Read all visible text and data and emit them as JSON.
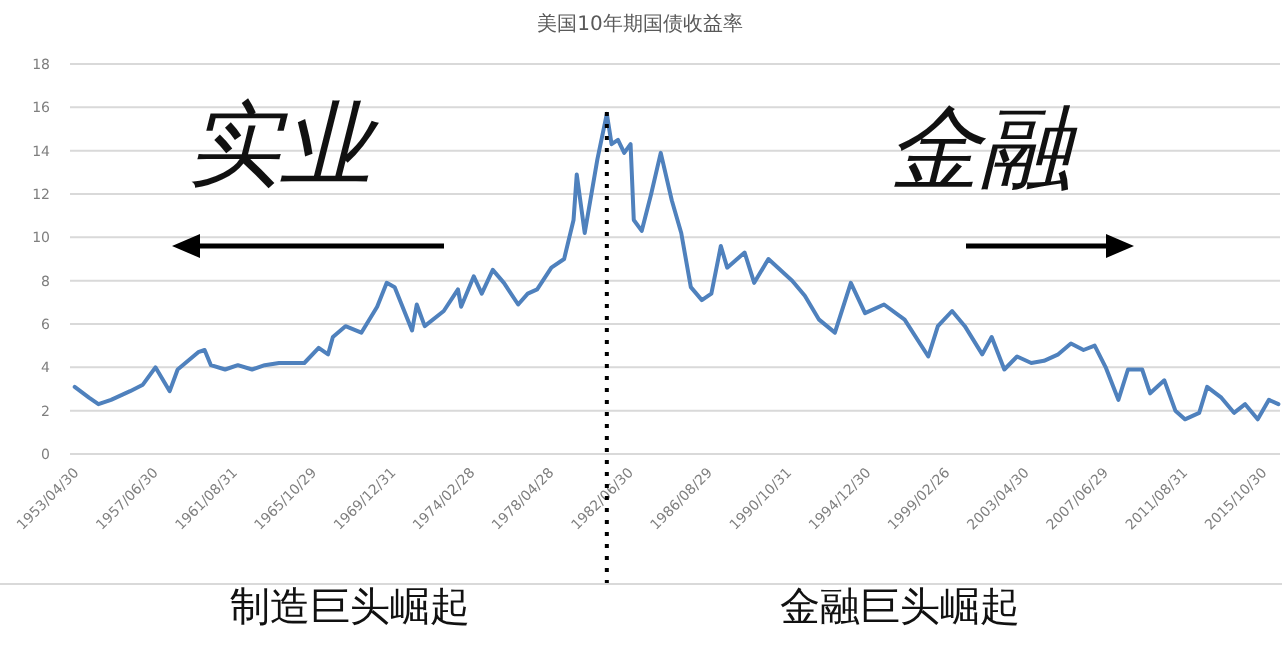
{
  "chart_data": {
    "type": "line",
    "title": "美国10年期国债收益率",
    "x": [
      "1953-04",
      "1954-01",
      "1954-07",
      "1955-03",
      "1956-03",
      "1956-11",
      "1957-07",
      "1958-04",
      "1958-09",
      "1959-10",
      "1960-02",
      "1960-06",
      "1961-03",
      "1961-11",
      "1962-08",
      "1963-04",
      "1964-01",
      "1965-05",
      "1966-02",
      "1966-08",
      "1966-11",
      "1967-07",
      "1968-05",
      "1969-03",
      "1969-09",
      "1970-02",
      "1971-01",
      "1971-04",
      "1971-09",
      "1972-09",
      "1973-06",
      "1973-08",
      "1974-04",
      "1974-09",
      "1975-04",
      "1975-11",
      "1976-08",
      "1977-02",
      "1977-08",
      "1978-05",
      "1979-01",
      "1979-07",
      "1979-09",
      "1980-02",
      "1980-10",
      "1981-04",
      "1981-07",
      "1981-11",
      "1982-03",
      "1982-07",
      "1982-09",
      "1983-02",
      "1983-08",
      "1984-02",
      "1984-09",
      "1985-03",
      "1985-09",
      "1986-04",
      "1986-10",
      "1987-04",
      "1987-08",
      "1988-07",
      "1989-01",
      "1989-10",
      "1991-01",
      "1991-09",
      "1992-06",
      "1993-04",
      "1994-02",
      "1994-11",
      "1995-11",
      "1996-12",
      "1998-03",
      "1998-09",
      "1999-06",
      "2000-02",
      "2001-01",
      "2001-07",
      "2002-03",
      "2002-11",
      "2003-08",
      "2004-04",
      "2005-01",
      "2005-09",
      "2006-05",
      "2006-12",
      "2007-07",
      "2008-03",
      "2008-09",
      "2009-06",
      "2009-11",
      "2010-08",
      "2011-03",
      "2011-09",
      "2012-06",
      "2012-11",
      "2013-08",
      "2014-04",
      "2014-11",
      "2015-07",
      "2016-02",
      "2016-08"
    ],
    "series": [
      {
        "color": "#4f81bd",
        "values": [
          3.1,
          2.6,
          2.3,
          2.5,
          2.9,
          3.2,
          4.0,
          2.9,
          3.9,
          4.7,
          4.8,
          4.1,
          3.9,
          4.1,
          3.9,
          4.1,
          4.2,
          4.2,
          4.9,
          4.6,
          5.4,
          5.9,
          5.6,
          6.8,
          7.9,
          7.7,
          5.7,
          6.9,
          5.9,
          6.6,
          7.6,
          6.8,
          8.2,
          7.4,
          8.5,
          7.9,
          6.9,
          7.4,
          7.6,
          8.6,
          9.0,
          10.8,
          12.9,
          10.2,
          13.6,
          15.7,
          14.3,
          14.5,
          13.9,
          14.3,
          10.8,
          10.3,
          12.0,
          13.9,
          11.7,
          10.2,
          7.7,
          7.1,
          7.4,
          9.6,
          8.6,
          9.3,
          7.9,
          9.0,
          8.0,
          7.3,
          6.2,
          5.6,
          7.9,
          6.5,
          6.9,
          6.2,
          4.5,
          5.9,
          6.6,
          5.9,
          4.6,
          5.4,
          3.9,
          4.5,
          4.2,
          4.3,
          4.6,
          5.1,
          4.8,
          5.0,
          4.0,
          2.5,
          3.9,
          3.9,
          2.8,
          3.4,
          2.0,
          1.6,
          1.9,
          3.1,
          2.6,
          1.9,
          2.3,
          1.6,
          2.5,
          2.3
        ]
      }
    ],
    "xlim": [
      "1953-01",
      "2016-09"
    ],
    "xticks": [
      {
        "value": "1953-04-30",
        "label": "1953/04/30"
      },
      {
        "value": "1957-06-30",
        "label": "1957/06/30"
      },
      {
        "value": "1961-08-31",
        "label": "1961/08/31"
      },
      {
        "value": "1965-10-29",
        "label": "1965/10/29"
      },
      {
        "value": "1969-12-31",
        "label": "1969/12/31"
      },
      {
        "value": "1974-02-28",
        "label": "1974/02/28"
      },
      {
        "value": "1978-04-28",
        "label": "1978/04/28"
      },
      {
        "value": "1982-06-30",
        "label": "1982/06/30"
      },
      {
        "value": "1986-08-29",
        "label": "1986/08/29"
      },
      {
        "value": "1990-10-31",
        "label": "1990/10/31"
      },
      {
        "value": "1994-12-30",
        "label": "1994/12/30"
      },
      {
        "value": "1999-02-26",
        "label": "1999/02/26"
      },
      {
        "value": "2003-04-30",
        "label": "2003/04/30"
      },
      {
        "value": "2007-06-29",
        "label": "2007/06/29"
      },
      {
        "value": "2011-08-31",
        "label": "2011/08/31"
      },
      {
        "value": "2015-10-30",
        "label": "2015/10/30"
      }
    ],
    "ylim": [
      0,
      18
    ],
    "yticks": [
      0,
      2,
      4,
      6,
      8,
      10,
      12,
      14,
      16,
      18
    ],
    "grid": "y",
    "ref_lines": [
      {
        "axis": "x",
        "value": "1981-04",
        "line_style": "dotted",
        "color": "#000000"
      }
    ],
    "annotations": [
      "实业",
      "金融",
      "制造巨头崛起",
      "金融巨头崛起"
    ]
  }
}
